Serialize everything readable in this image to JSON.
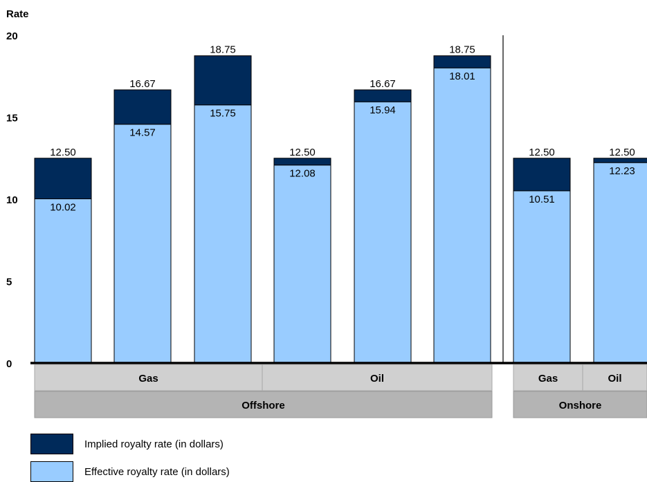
{
  "chart_data": {
    "type": "bar",
    "stacked": true,
    "ylabel": "Rate",
    "ylim": [
      0,
      20
    ],
    "yticks": [
      "0",
      "5",
      "10",
      "15",
      "20"
    ],
    "grid": false,
    "legend_position": "bottom-left",
    "series": [
      {
        "name": "Effective royalty rate (in dollars)",
        "color": "#99ccff",
        "values": [
          10.02,
          14.57,
          15.75,
          12.08,
          15.94,
          18.01,
          10.51,
          12.23
        ],
        "labels": [
          "10.02",
          "14.57",
          "15.75",
          "12.08",
          "15.94",
          "18.01",
          "10.51",
          "12.23"
        ]
      },
      {
        "name": "Implied royalty rate (in dollars)",
        "color": "#002a5a",
        "totals": [
          12.5,
          16.67,
          18.75,
          12.5,
          16.67,
          18.75,
          12.5,
          12.5
        ],
        "labels": [
          "12.50",
          "16.67",
          "18.75",
          "12.50",
          "16.67",
          "18.75",
          "12.50",
          "12.50"
        ]
      }
    ],
    "groups_level1": [
      {
        "label": "Gas",
        "bars": [
          0,
          1,
          2
        ]
      },
      {
        "label": "Oil",
        "bars": [
          3,
          4,
          5
        ]
      },
      {
        "label": "Gas",
        "bars": [
          6
        ]
      },
      {
        "label": "Oil",
        "bars": [
          7
        ]
      }
    ],
    "groups_level2": [
      {
        "label": "Offshore",
        "bars": [
          0,
          1,
          2,
          3,
          4,
          5
        ]
      },
      {
        "label": "Onshore",
        "bars": [
          6,
          7
        ]
      }
    ]
  },
  "legend": {
    "implied_label": "Implied royalty rate (in dollars)",
    "effective_label": "Effective royalty rate (in dollars)",
    "implied_color": "#002a5a",
    "effective_color": "#99ccff"
  }
}
